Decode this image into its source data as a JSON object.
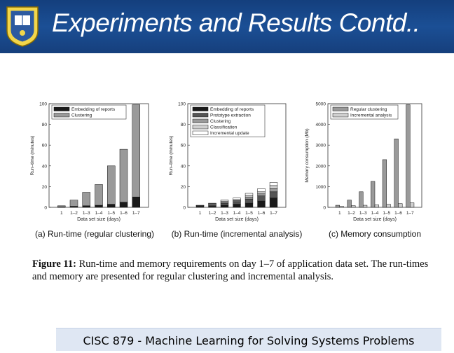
{
  "slide": {
    "title": "Experiments and Results Contd..",
    "footer": "CISC 879 - Machine Learning for Solving Systems Problems",
    "caption_label": "Figure 11:",
    "caption_text": " Run-time and memory requirements on day 1–7 of application data set. The run-times and memory are presented for regular clustering and incremental analysis.",
    "logo_icon": "university-seal-icon"
  },
  "colors": {
    "header": "#1b4f95",
    "seg_dark": "#1a1a1a",
    "seg_dgray": "#555555",
    "seg_gray": "#9a9a9a",
    "seg_light": "#cfcfcf",
    "seg_white": "#ffffff"
  },
  "chart_data": [
    {
      "type": "bar",
      "stacked": true,
      "subcaption": "(a) Run-time (regular clustering)",
      "xlabel": "Data set size (days)",
      "ylabel": "Run–time (minutes)",
      "categories": [
        "1",
        "1–2",
        "1–3",
        "1–4",
        "1–5",
        "1–6",
        "1–7"
      ],
      "ylim": [
        0,
        100
      ],
      "yticks": [
        0,
        20,
        40,
        60,
        80,
        100
      ],
      "legend_position": "top-left",
      "series": [
        {
          "name": "Embedding of reports",
          "color": "seg_dark",
          "values": [
            0.5,
            1,
            1.5,
            2,
            3,
            5,
            10
          ]
        },
        {
          "name": "Clustering",
          "color": "seg_gray",
          "values": [
            1,
            6,
            13,
            20,
            37,
            51,
            89
          ]
        }
      ]
    },
    {
      "type": "bar",
      "stacked": true,
      "subcaption": "(b) Run-time (incremental analysis)",
      "xlabel": "Data set size (days)",
      "ylabel": "Run–time (minutes)",
      "categories": [
        "1",
        "1–2",
        "1–3",
        "1–4",
        "1–5",
        "1–6",
        "1–7"
      ],
      "ylim": [
        0,
        100
      ],
      "yticks": [
        0,
        20,
        40,
        60,
        80,
        100
      ],
      "legend_position": "top-left",
      "series": [
        {
          "name": "Embedding of reports",
          "color": "seg_dark",
          "values": [
            0.5,
            1,
            2,
            3,
            4,
            6,
            9
          ]
        },
        {
          "name": "Prototype extraction",
          "color": "seg_dgray",
          "values": [
            0.5,
            1,
            2,
            2.5,
            4,
            5,
            6
          ]
        },
        {
          "name": "Clustering",
          "color": "seg_gray",
          "values": [
            0.5,
            1,
            1,
            1,
            2,
            2,
            3
          ]
        },
        {
          "name": "Classification",
          "color": "seg_light",
          "values": [
            0.3,
            0.5,
            1,
            1,
            1.5,
            2,
            3
          ]
        },
        {
          "name": "Incremental update",
          "color": "seg_white",
          "values": [
            0.2,
            0.5,
            1,
            1.5,
            2,
            3,
            3
          ]
        }
      ]
    },
    {
      "type": "bar",
      "stacked": false,
      "subcaption": "(c) Memory consumption",
      "xlabel": "Data set size (days)",
      "ylabel": "Memory consumption (Mb)",
      "categories": [
        "1",
        "1–2",
        "1–3",
        "1–4",
        "1–5",
        "1–6",
        "1–7"
      ],
      "ylim": [
        0,
        5000
      ],
      "yticks": [
        0,
        1000,
        2000,
        3000,
        4000,
        5000
      ],
      "legend_position": "top-left",
      "series": [
        {
          "name": "Regular clustering",
          "color": "seg_gray",
          "values": [
            100,
            350,
            750,
            1250,
            2300,
            3300,
            4950
          ]
        },
        {
          "name": "Incremental analysis",
          "color": "seg_light",
          "values": [
            50,
            80,
            100,
            120,
            150,
            180,
            220
          ]
        }
      ]
    }
  ]
}
